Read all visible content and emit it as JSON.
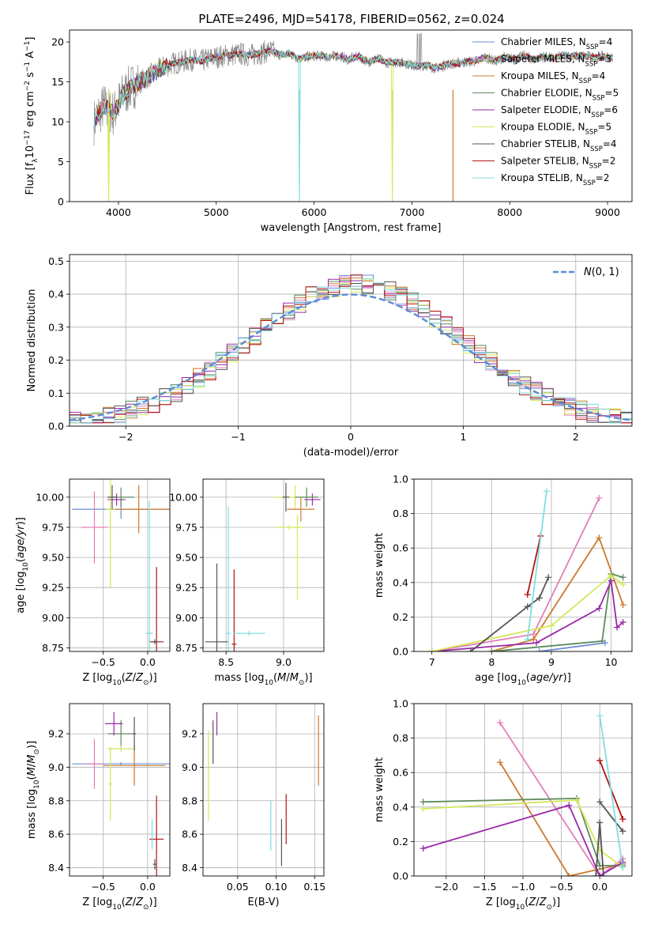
{
  "figure": {
    "title": "PLATE=2496, MJD=54178, FIBERID=0562, z=0.024"
  },
  "models": [
    {
      "label": "Chabrier MILES, N",
      "nssp": "4",
      "color": "#6b8bd6"
    },
    {
      "label": "Salpeter MILES, N",
      "nssp": "3",
      "color": "#e37fb7"
    },
    {
      "label": "Kroupa MILES, N",
      "nssp": "4",
      "color": "#cc7a2c"
    },
    {
      "label": "Chabrier ELODIE, N",
      "nssp": "5",
      "color": "#5c8a5c"
    },
    {
      "label": "Salpeter ELODIE, N",
      "nssp": "6",
      "color": "#9a2aa8"
    },
    {
      "label": "Kroupa ELODIE, N",
      "nssp": "5",
      "color": "#d3e85a"
    },
    {
      "label": "Chabrier STELIB, N",
      "nssp": "4",
      "color": "#555555"
    },
    {
      "label": "Salpeter STELIB, N",
      "nssp": "2",
      "color": "#b31212"
    },
    {
      "label": "Kroupa STELIB, N",
      "nssp": "2",
      "color": "#7fdde0"
    }
  ],
  "chart_data": [
    {
      "id": "spectrum",
      "type": "line",
      "title": "PLATE=2496, MJD=54178, FIBERID=0562, z=0.024",
      "xlabel": "wavelength [Angstrom, rest frame]",
      "ylabel": "Flux [f_λ 10^-17 erg cm^-2 s^-1 A^-1]",
      "xlim": [
        3500,
        9250
      ],
      "ylim": [
        0,
        21.5
      ],
      "xticks": [
        4000,
        5000,
        6000,
        7000,
        8000,
        9000
      ],
      "yticks": [
        0,
        5,
        10,
        15,
        20
      ],
      "x": [
        3750,
        3850,
        3950,
        4050,
        4150,
        4250,
        4350,
        4450,
        4550,
        4650,
        4750,
        4850,
        4950,
        5050,
        5150,
        5250,
        5350,
        5450,
        5550,
        5650,
        5750,
        5850,
        5950,
        6050,
        6150,
        6250,
        6350,
        6450,
        6550,
        6650,
        6750,
        6850,
        6950,
        7050,
        7150,
        7250,
        7350,
        7450,
        7550,
        7650,
        7750,
        7850,
        7950,
        8050,
        8150,
        8250,
        8350,
        8450,
        8550,
        8650,
        8750,
        8850,
        8950,
        9050
      ],
      "y": [
        10,
        12,
        11,
        13.5,
        14.5,
        15.2,
        16,
        16.8,
        17.3,
        17.5,
        17.8,
        17.6,
        18,
        18.2,
        18.4,
        18.5,
        18.3,
        18.6,
        18.9,
        18.4,
        18.5,
        17.9,
        18.2,
        18.3,
        18.1,
        18.3,
        17.8,
        18.2,
        17.5,
        17.9,
        17.4,
        17.5,
        17.3,
        17,
        17.1,
        16.7,
        17.2,
        17.3,
        17.5,
        17.6,
        18.1,
        17.6,
        18.1,
        17.8,
        18.3,
        17.8,
        18.2,
        17.9,
        18.3,
        18.2,
        18.3,
        18.1,
        18.2,
        18
      ],
      "drops": [
        {
          "x": 3900,
          "y": 0,
          "series": 5
        },
        {
          "x": 5850,
          "y": 0,
          "series": 8
        },
        {
          "x": 6800,
          "y": 0,
          "series": 5
        },
        {
          "x": 7420,
          "y": 0,
          "series": 2
        }
      ]
    },
    {
      "id": "residuals",
      "type": "histogram",
      "xlabel": "(data-model)/error",
      "ylabel": "Normed distribution",
      "xlim": [
        -2.5,
        2.5
      ],
      "ylim": [
        0,
        0.52
      ],
      "xticks": [
        -2,
        -1,
        0,
        1,
        2
      ],
      "yticks": [
        0.0,
        0.1,
        0.2,
        0.3,
        0.4,
        0.5
      ],
      "grid": true,
      "legend": "top-right",
      "normal_label": "N(0,1)",
      "normal_color": "#5b8bd9",
      "bin_width": 0.1
    },
    {
      "id": "age_vs_Z",
      "type": "errorbar",
      "xlabel": "Z [log10(Z/Z⊙)]",
      "ylabel": "age  [log10(age/yr)]",
      "xlim": [
        -0.88,
        0.25
      ],
      "ylim": [
        8.72,
        10.15
      ],
      "xticks": [
        -0.5,
        0.0
      ],
      "xtick_labels": [
        "−0.5",
        "0.0"
      ],
      "yticks": [
        8.75,
        9.0,
        9.25,
        9.5,
        9.75,
        10.0
      ],
      "points": [
        {
          "x": -0.3,
          "y": 9.9,
          "xerr": 0.55,
          "yerr": 0.08,
          "c": 0
        },
        {
          "x": -0.6,
          "y": 9.75,
          "xerr": 0.15,
          "yerr": 0.3,
          "c": 1
        },
        {
          "x": -0.1,
          "y": 9.9,
          "xerr": 0.35,
          "yerr": 0.2,
          "c": 2
        },
        {
          "x": -0.3,
          "y": 10.0,
          "xerr": 0.15,
          "yerr": 0.08,
          "c": 3
        },
        {
          "x": -0.35,
          "y": 9.98,
          "xerr": 0.1,
          "yerr": 0.05,
          "c": 4
        },
        {
          "x": -0.42,
          "y": 9.9,
          "xerr": 0.05,
          "yerr": 0.65,
          "c": 5
        },
        {
          "x": -0.4,
          "y": 10.0,
          "xerr": 0.05,
          "yerr": 0.1,
          "c": 6
        },
        {
          "x": 0.1,
          "y": 8.8,
          "xerr": 0.08,
          "yerr": 0.62,
          "c": 7
        },
        {
          "x": 0.02,
          "y": 8.87,
          "xerr": 0.04,
          "yerr": 1.1,
          "c": 8
        },
        {
          "x": 0.08,
          "y": 8.8,
          "xerr": 0.04,
          "yerr": 0.02,
          "c": 6
        }
      ]
    },
    {
      "id": "age_vs_mass",
      "type": "errorbar",
      "xlabel": "mass [log10(M/M⊙)]",
      "xlim": [
        8.3,
        9.35
      ],
      "ylim": [
        8.72,
        10.15
      ],
      "xticks": [
        8.5,
        9.0
      ],
      "xtick_labels": [
        "8.5",
        "9.0"
      ],
      "yticks": [
        8.75,
        9.0,
        9.25,
        9.5,
        9.75,
        10.0
      ],
      "points": [
        {
          "x": 9.25,
          "y": 9.98,
          "xerr": 0.07,
          "yerr": 0.05,
          "c": 4
        },
        {
          "x": 9.1,
          "y": 10.0,
          "xerr": 0.18,
          "yerr": 0.1,
          "c": 5
        },
        {
          "x": 9.02,
          "y": 10.0,
          "xerr": 0.03,
          "yerr": 0.12,
          "c": 6
        },
        {
          "x": 9.15,
          "y": 9.9,
          "xerr": 0.12,
          "yerr": 0.1,
          "c": 2
        },
        {
          "x": 9.2,
          "y": 10.0,
          "xerr": 0.1,
          "yerr": 0.08,
          "c": 3
        },
        {
          "x": 9.05,
          "y": 9.75,
          "xerr": 0.12,
          "yerr": 0.02,
          "c": 5
        },
        {
          "x": 9.12,
          "y": 9.5,
          "xerr": 0.02,
          "yerr": 0.35,
          "c": 5
        },
        {
          "x": 8.42,
          "y": 8.8,
          "xerr": 0.1,
          "yerr": 0.65,
          "c": 6
        },
        {
          "x": 8.57,
          "y": 8.78,
          "xerr": 0.02,
          "yerr": 0.62,
          "c": 7
        },
        {
          "x": 8.52,
          "y": 8.87,
          "xerr": 0.02,
          "yerr": 1.05,
          "c": 8
        },
        {
          "x": 8.7,
          "y": 8.87,
          "xerr": 0.14,
          "yerr": 0.02,
          "c": 8
        }
      ]
    },
    {
      "id": "massweight_vs_age",
      "type": "line",
      "xlabel": "age  [log10(age/yr)]",
      "ylabel": "mass weight",
      "xlim": [
        6.7,
        10.35
      ],
      "ylim": [
        0,
        1
      ],
      "xticks": [
        7,
        8,
        9,
        10
      ],
      "yticks": [
        0.0,
        0.2,
        0.4,
        0.6,
        0.8,
        1.0
      ],
      "series": [
        {
          "c": 1,
          "x": [
            7.0,
            8.7,
            9.8
          ],
          "y": [
            0.0,
            0.1,
            0.89
          ]
        },
        {
          "c": 2,
          "x": [
            8.0,
            8.7,
            9.8,
            10.2
          ],
          "y": [
            0.0,
            0.07,
            0.66,
            0.27
          ]
        },
        {
          "c": 3,
          "x": [
            8.0,
            9.85,
            10.0,
            10.2
          ],
          "y": [
            0.0,
            0.06,
            0.45,
            0.43
          ]
        },
        {
          "c": 4,
          "x": [
            7.0,
            8.75,
            9.8,
            10.0,
            10.1,
            10.2
          ],
          "y": [
            0.0,
            0.05,
            0.25,
            0.41,
            0.14,
            0.17
          ]
        },
        {
          "c": 5,
          "x": [
            7.0,
            9.0,
            10.0,
            10.2
          ],
          "y": [
            0.0,
            0.15,
            0.44,
            0.39
          ]
        },
        {
          "c": 6,
          "x": [
            7.65,
            8.6,
            8.8,
            8.95
          ],
          "y": [
            0.0,
            0.26,
            0.31,
            0.43
          ]
        },
        {
          "c": 7,
          "x": [
            8.6,
            8.82
          ],
          "y": [
            0.33,
            0.67
          ]
        },
        {
          "c": 8,
          "x": [
            8.6,
            8.92
          ],
          "y": [
            0.07,
            0.93
          ]
        },
        {
          "c": 0,
          "x": [
            8.8,
            9.9
          ],
          "y": [
            0.0,
            0.05
          ]
        }
      ]
    },
    {
      "id": "mass_vs_Z",
      "type": "errorbar",
      "xlabel": "Z [log10(Z/Z⊙)]",
      "ylabel": "mass [log10(M/M⊙)]",
      "xlim": [
        -0.88,
        0.25
      ],
      "ylim": [
        8.35,
        9.38
      ],
      "xticks": [
        -0.5,
        0.0
      ],
      "xtick_labels": [
        "−0.5",
        "0.0"
      ],
      "yticks": [
        8.4,
        8.6,
        8.8,
        9.0,
        9.2
      ],
      "points": [
        {
          "x": -0.3,
          "y": 9.02,
          "xerr": 0.55,
          "yerr": 0.01,
          "c": 0
        },
        {
          "x": -0.6,
          "y": 9.02,
          "xerr": 0.1,
          "yerr": 0.15,
          "c": 1
        },
        {
          "x": -0.15,
          "y": 9.01,
          "xerr": 0.35,
          "yerr": 0.12,
          "c": 2
        },
        {
          "x": -0.3,
          "y": 9.2,
          "xerr": 0.15,
          "yerr": 0.08,
          "c": 3
        },
        {
          "x": -0.38,
          "y": 9.26,
          "xerr": 0.1,
          "yerr": 0.07,
          "c": 4
        },
        {
          "x": -0.3,
          "y": 9.11,
          "xerr": 0.15,
          "yerr": 0.02,
          "c": 5
        },
        {
          "x": -0.42,
          "y": 8.9,
          "xerr": 0.02,
          "yerr": 0.22,
          "c": 5
        },
        {
          "x": -0.15,
          "y": 9.2,
          "xerr": 0.02,
          "yerr": 0.1,
          "c": 6
        },
        {
          "x": 0.1,
          "y": 8.57,
          "xerr": 0.08,
          "yerr": 0.26,
          "c": 7
        },
        {
          "x": 0.05,
          "y": 8.6,
          "xerr": 0.02,
          "yerr": 0.09,
          "c": 8
        },
        {
          "x": 0.08,
          "y": 8.42,
          "xerr": 0.02,
          "yerr": 0.03,
          "c": 6
        }
      ]
    },
    {
      "id": "mass_vs_ebv",
      "type": "errorbar",
      "xlabel": "E(B-V)",
      "xlim": [
        0.005,
        0.162
      ],
      "ylim": [
        8.35,
        9.38
      ],
      "xticks": [
        0.05,
        0.1,
        0.15
      ],
      "xtick_labels": [
        "0.05",
        "0.10",
        "0.15"
      ],
      "yticks": [
        8.4,
        8.6,
        8.8,
        9.0,
        9.2
      ],
      "points": [
        {
          "x": 0.012,
          "y": 8.95,
          "xerr": 0,
          "yerr": 0.27,
          "c": 5
        },
        {
          "x": 0.018,
          "y": 9.15,
          "xerr": 0,
          "yerr": 0.13,
          "c": 6
        },
        {
          "x": 0.023,
          "y": 9.26,
          "xerr": 0,
          "yerr": 0.07,
          "c": 4
        },
        {
          "x": 0.093,
          "y": 8.65,
          "xerr": 0,
          "yerr": 0.15,
          "c": 8
        },
        {
          "x": 0.107,
          "y": 8.55,
          "xerr": 0,
          "yerr": 0.14,
          "c": 6
        },
        {
          "x": 0.113,
          "y": 8.69,
          "xerr": 0,
          "yerr": 0.15,
          "c": 7
        },
        {
          "x": 0.155,
          "y": 9.1,
          "xerr": 0,
          "yerr": 0.21,
          "c": 2
        }
      ]
    },
    {
      "id": "massweight_vs_Z",
      "type": "line",
      "xlabel": "Z [log10(Z/Z⊙)]",
      "ylabel": "mass weight",
      "xlim": [
        -2.42,
        0.42
      ],
      "ylim": [
        0,
        1
      ],
      "xticks": [
        -2.0,
        -1.5,
        -1.0,
        -0.5,
        0.0
      ],
      "xtick_labels": [
        "−2.0",
        "−1.5",
        "−1.0",
        "−0.5",
        "0.0"
      ],
      "yticks": [
        0.0,
        0.2,
        0.4,
        0.6,
        0.8,
        1.0
      ],
      "series": [
        {
          "c": 1,
          "x": [
            -1.3,
            0.0,
            0.3
          ],
          "y": [
            0.89,
            0.0,
            0.1
          ]
        },
        {
          "c": 2,
          "x": [
            -1.3,
            -0.4,
            0.3
          ],
          "y": [
            0.66,
            0.0,
            0.07
          ]
        },
        {
          "c": 3,
          "x": [
            -2.3,
            -0.3,
            0.0,
            0.3
          ],
          "y": [
            0.43,
            0.45,
            0.06,
            0.06
          ]
        },
        {
          "c": 5,
          "x": [
            -2.3,
            -0.3,
            0.0,
            0.3
          ],
          "y": [
            0.39,
            0.44,
            0.15,
            0.05
          ]
        },
        {
          "c": 4,
          "x": [
            -2.3,
            -0.4,
            0.0,
            0.3
          ],
          "y": [
            0.16,
            0.41,
            0.0,
            0.08
          ]
        },
        {
          "c": 6,
          "x": [
            0.0,
            0.3
          ],
          "y": [
            0.43,
            0.26
          ]
        },
        {
          "c": 7,
          "x": [
            0.0,
            0.3
          ],
          "y": [
            0.67,
            0.33
          ]
        },
        {
          "c": 8,
          "x": [
            0.0,
            0.3
          ],
          "y": [
            0.93,
            0.05
          ]
        },
        {
          "c": 6,
          "x": [
            -0.05,
            0.0,
            0.05
          ],
          "y": [
            0.0,
            0.31,
            0.0
          ]
        }
      ]
    }
  ]
}
